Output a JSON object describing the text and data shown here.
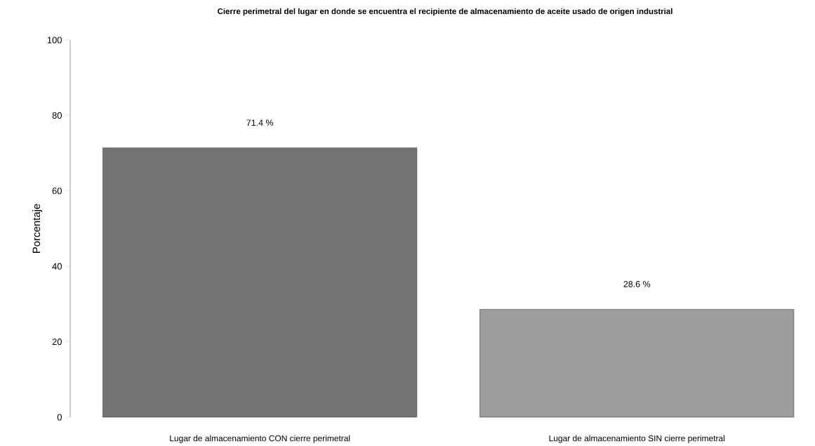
{
  "chart_data": {
    "type": "bar",
    "title": "Cierre perimetral del lugar en donde se encuentra el recipiente de almacenamiento de aceite usado de origen industrial",
    "ylabel": "Porcentaje",
    "categories": [
      "Lugar de almacenamiento CON cierre perimetral",
      "Lugar de almacenamiento SIN cierre perimetral"
    ],
    "values": [
      71.4,
      28.6
    ],
    "value_labels": [
      "71.4 %",
      "28.6 %"
    ],
    "colors": [
      "#737373",
      "#9c9c9c"
    ],
    "ylim": [
      0,
      100
    ],
    "yticks": [
      0,
      20,
      40,
      60,
      80,
      100
    ]
  }
}
